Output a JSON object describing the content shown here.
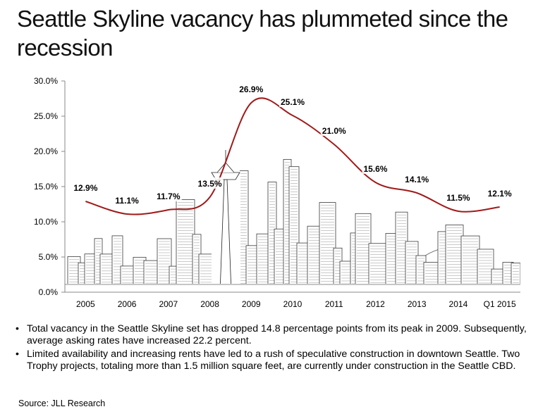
{
  "title": "Seattle Skyline vacancy has plummeted since the recession",
  "chart_data": {
    "type": "line",
    "categories": [
      "2005",
      "2006",
      "2007",
      "2008",
      "2009",
      "2010",
      "2011",
      "2012",
      "2013",
      "2014",
      "Q1 2015"
    ],
    "values": [
      12.9,
      11.1,
      11.7,
      13.5,
      26.9,
      25.1,
      21.0,
      15.6,
      14.1,
      11.5,
      12.1
    ],
    "data_labels": [
      "12.9%",
      "11.1%",
      "11.7%",
      "13.5%",
      "26.9%",
      "25.1%",
      "21.0%",
      "15.6%",
      "14.1%",
      "11.5%",
      "12.1%"
    ],
    "y_ticks": [
      "0.0%",
      "5.0%",
      "10.0%",
      "15.0%",
      "20.0%",
      "25.0%",
      "30.0%"
    ],
    "ylim": [
      0,
      30
    ],
    "line_color": "#a01a1a",
    "background": "sketch of the Seattle skyline with Space Needle and Mount Rainier"
  },
  "bullets": [
    "Total vacancy in the Seattle Skyline set has dropped 14.8 percentage points from its peak in 2009. Subsequently, average asking rates have increased 22.2 percent.",
    "Limited availability and increasing rents have led to a rush of speculative construction in downtown Seattle. Two Trophy projects, totaling more than 1.5 million square feet, are currently under construction in the Seattle CBD."
  ],
  "source": "Source: JLL Research"
}
